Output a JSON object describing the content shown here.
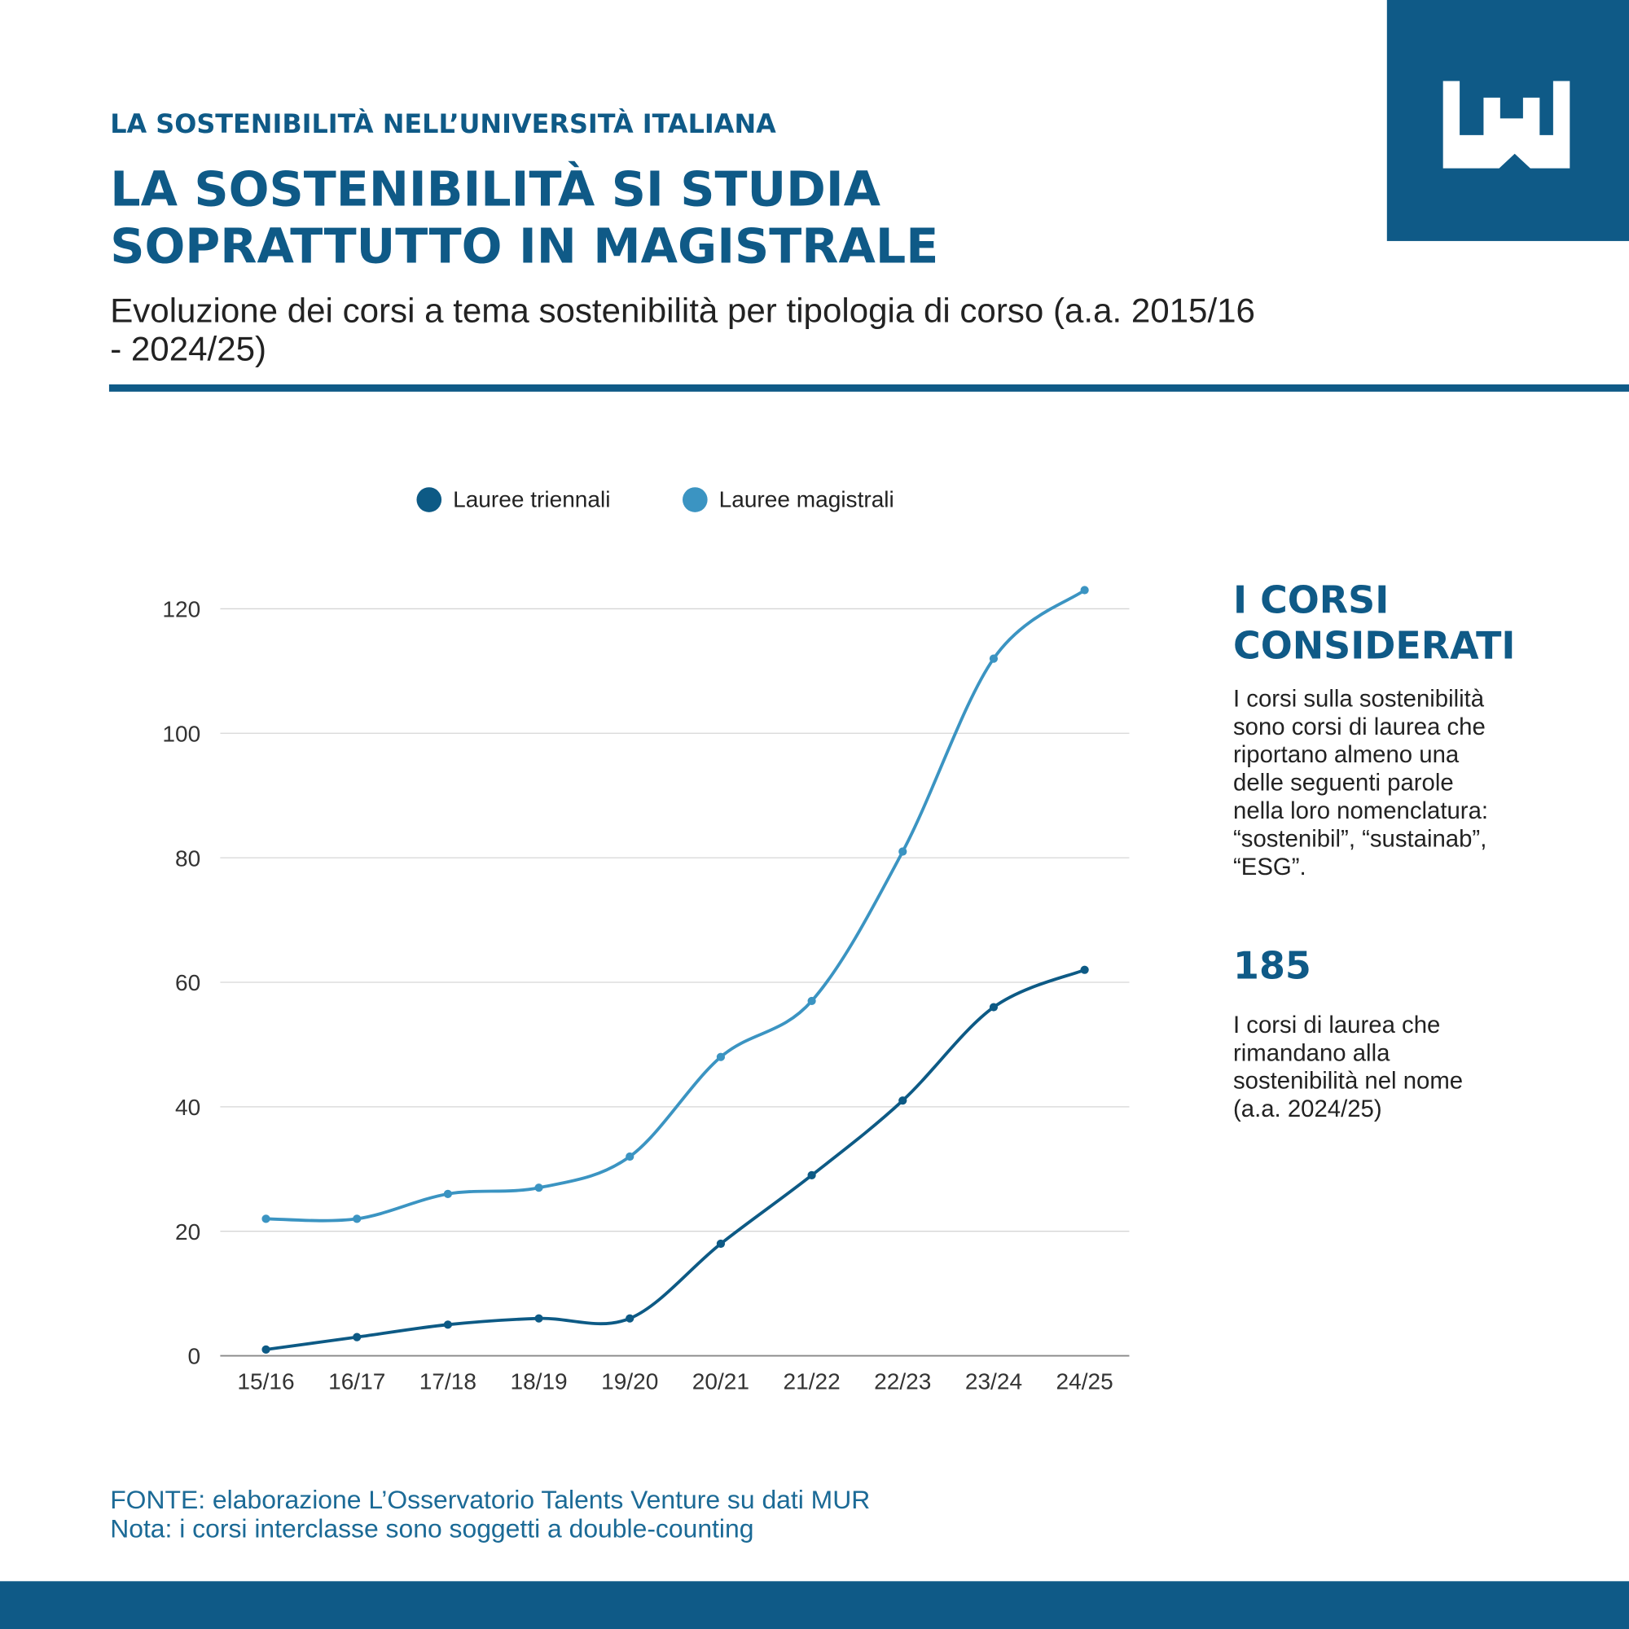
{
  "header": {
    "kicker": "LA SOSTENIBILITÀ NELL’UNIVERSITÀ ITALIANA",
    "title": [
      "LA SOSTENIBILITÀ SI STUDIA",
      "SOPRATTUTTO IN MAGISTRALE"
    ],
    "subtitle": [
      "Evoluzione dei corsi a tema sostenibilità per tipologia di corso (a.a. 2015/16",
      "- 2024/25)"
    ]
  },
  "chart_data": {
    "type": "line",
    "categories": [
      "15/16",
      "16/17",
      "17/18",
      "18/19",
      "19/20",
      "20/21",
      "21/22",
      "22/23",
      "23/24",
      "24/25"
    ],
    "series": [
      {
        "name": "Lauree triennali",
        "color": "#0d5a85",
        "values": [
          1,
          3,
          5,
          6,
          6,
          18,
          29,
          41,
          56,
          62
        ]
      },
      {
        "name": "Lauree magistrali",
        "color": "#3b94c2",
        "values": [
          22,
          22,
          26,
          27,
          32,
          48,
          57,
          81,
          112,
          123
        ]
      }
    ],
    "ylim": [
      0,
      120
    ],
    "yticks": [
      0,
      20,
      40,
      60,
      80,
      100,
      120
    ],
    "grid": true,
    "smooth": true,
    "legend": "top"
  },
  "sidebar": {
    "heading": [
      "I CORSI",
      "CONSIDERATI"
    ],
    "text": [
      "I corsi sulla sostenibilità",
      "sono corsi di laurea che",
      "riportano almeno una",
      "delle seguenti parole",
      "nella loro nomenclatura:",
      "“sostenibil”, “sustainab”,",
      "“ESG”."
    ],
    "figure": "185",
    "figure_text": [
      "I corsi di laurea che",
      "rimandano alla",
      "sostenibilità nel nome",
      "(a.a. 2024/25)"
    ]
  },
  "footer": {
    "source": "FONTE: elaborazione L’Osservatorio Talents Venture su dati MUR",
    "note": "Nota: i corsi interclasse sono soggetti a double-counting"
  }
}
